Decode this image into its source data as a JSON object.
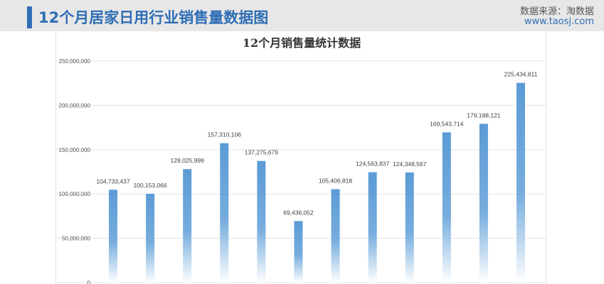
{
  "header": {
    "title": "12个月居家日用行业销售量数据图",
    "source_label": "数据来源：淘数据",
    "source_url": "www.taosj.com",
    "accent_color": "#2f6eb5"
  },
  "chart_data": {
    "type": "bar",
    "title": "12个月销售量统计数据",
    "xlabel": "",
    "ylabel": "",
    "ylim": [
      0,
      250000000
    ],
    "yticks": [
      0,
      50000000,
      100000000,
      150000000,
      200000000,
      250000000
    ],
    "ytick_labels": [
      "0",
      "50,000,000",
      "100,000,000",
      "150,000,000",
      "200,000,000",
      "250,000,000"
    ],
    "values": [
      104733437,
      100153066,
      128025999,
      157310106,
      137275679,
      69436052,
      105406818,
      124563837,
      124348567,
      169543714,
      179188121,
      225434811
    ],
    "value_labels": [
      "104,733,437",
      "100,153,066",
      "128,025,999",
      "157,310,106",
      "137,275,679",
      "69,436,052",
      "105,406,818",
      "124,563,837",
      "124,348,567",
      "169,543,714",
      "179,188,121",
      "225,434,811"
    ],
    "grid": true,
    "legend": "none",
    "bar_color": "#5b9bd5"
  }
}
